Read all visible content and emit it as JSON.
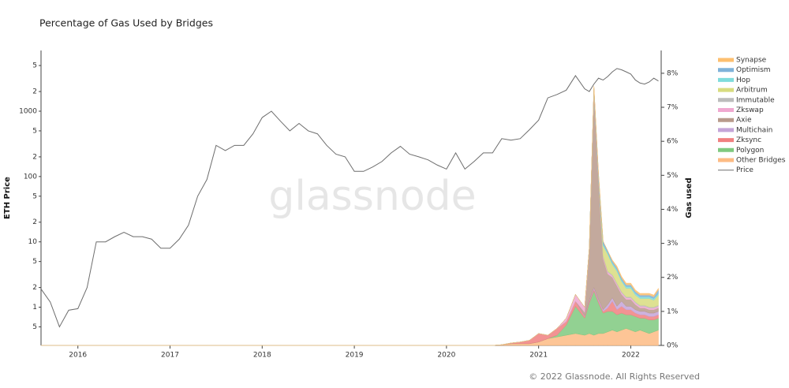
{
  "chart_data": {
    "type": "line+stacked-area",
    "title": "Percentage of Gas Used by Bridges",
    "ylabel": "ETH Price",
    "y2label": "Gas used",
    "watermark": "glassnode",
    "footer": "© 2022 Glassnode. All Rights Reserved",
    "ylog": true,
    "x": [
      2015.6,
      2015.7,
      2015.8,
      2015.9,
      2016.0,
      2016.1,
      2016.2,
      2016.3,
      2016.4,
      2016.5,
      2016.6,
      2016.7,
      2016.8,
      2016.9,
      2017.0,
      2017.1,
      2017.2,
      2017.3,
      2017.4,
      2017.5,
      2017.6,
      2017.7,
      2017.8,
      2017.9,
      2018.0,
      2018.1,
      2018.2,
      2018.3,
      2018.4,
      2018.5,
      2018.6,
      2018.7,
      2018.8,
      2018.9,
      2019.0,
      2019.1,
      2019.2,
      2019.3,
      2019.4,
      2019.5,
      2019.6,
      2019.7,
      2019.8,
      2019.9,
      2020.0,
      2020.1,
      2020.2,
      2020.3,
      2020.4,
      2020.5,
      2020.6,
      2020.7,
      2020.8,
      2020.9,
      2021.0,
      2021.1,
      2021.2,
      2021.3,
      2021.4,
      2021.5,
      2021.55,
      2021.6,
      2021.65,
      2021.7,
      2021.75,
      2021.8,
      2021.85,
      2021.9,
      2021.95,
      2022.0,
      2022.05,
      2022.1,
      2022.15,
      2022.2,
      2022.25,
      2022.3
    ],
    "xlim": [
      2015.6,
      2022.33
    ],
    "xticks": [
      2016,
      2017,
      2018,
      2019,
      2020,
      2021,
      2022
    ],
    "ylim": [
      0.26,
      8500
    ],
    "yticks": [
      {
        "value": 0.5,
        "label": "5"
      },
      1,
      2,
      5,
      10,
      {
        "value": 20,
        "label": "2"
      },
      {
        "value": 50,
        "label": "5"
      },
      100,
      {
        "value": 200,
        "label": "2"
      },
      {
        "value": 500,
        "label": "5"
      },
      1000,
      {
        "value": 2000,
        "label": "2"
      },
      {
        "value": 5000,
        "label": "5"
      }
    ],
    "y2lim": [
      0,
      8.67
    ],
    "y2ticks": [
      {
        "value": 0,
        "label": "0%"
      },
      {
        "value": 1,
        "label": "1%"
      },
      {
        "value": 2,
        "label": "2%"
      },
      {
        "value": 3,
        "label": "3%"
      },
      {
        "value": 4,
        "label": "4%"
      },
      {
        "value": 5,
        "label": "5%"
      },
      {
        "value": 6,
        "label": "6%"
      },
      {
        "value": 7,
        "label": "7%"
      },
      {
        "value": 8,
        "label": "8%"
      }
    ],
    "series": [
      {
        "name": "Synapse",
        "color": "#fdbf6f",
        "axis": "y2",
        "values": [
          0,
          0,
          0,
          0,
          0,
          0,
          0,
          0,
          0,
          0,
          0,
          0,
          0,
          0,
          0,
          0,
          0,
          0,
          0,
          0,
          0,
          0,
          0,
          0,
          0,
          0,
          0,
          0,
          0,
          0,
          0,
          0,
          0,
          0,
          0,
          0,
          0,
          0,
          0,
          0,
          0,
          0,
          0,
          0,
          0,
          0,
          0,
          0,
          0,
          0,
          0,
          0,
          0,
          0,
          0,
          0,
          0,
          0,
          0,
          0,
          0,
          0,
          0,
          0,
          0,
          0.03,
          0.05,
          0.05,
          0.05,
          0.05,
          0.05,
          0.05,
          0.05,
          0.05,
          0.05,
          0.05
        ]
      },
      {
        "name": "Optimism",
        "color": "#7fb2d9",
        "axis": "y2",
        "values": [
          0,
          0,
          0,
          0,
          0,
          0,
          0,
          0,
          0,
          0,
          0,
          0,
          0,
          0,
          0,
          0,
          0,
          0,
          0,
          0,
          0,
          0,
          0,
          0,
          0,
          0,
          0,
          0,
          0,
          0,
          0,
          0,
          0,
          0,
          0,
          0,
          0,
          0,
          0,
          0,
          0,
          0,
          0,
          0,
          0,
          0,
          0,
          0,
          0,
          0,
          0,
          0,
          0,
          0,
          0,
          0,
          0,
          0,
          0,
          0,
          0,
          0.05,
          0.1,
          0.08,
          0.05,
          0.05,
          0.05,
          0.05,
          0.05,
          0.05,
          0.05,
          0.05,
          0.05,
          0.05,
          0.05,
          0.1
        ]
      },
      {
        "name": "Hop",
        "color": "#7fdcdc",
        "axis": "y2",
        "values": [
          0,
          0,
          0,
          0,
          0,
          0,
          0,
          0,
          0,
          0,
          0,
          0,
          0,
          0,
          0,
          0,
          0,
          0,
          0,
          0,
          0,
          0,
          0,
          0,
          0,
          0,
          0,
          0,
          0,
          0,
          0,
          0,
          0,
          0,
          0,
          0,
          0,
          0,
          0,
          0,
          0,
          0,
          0,
          0,
          0,
          0,
          0,
          0,
          0,
          0,
          0,
          0,
          0,
          0,
          0,
          0,
          0,
          0,
          0,
          0,
          0,
          0,
          0.02,
          0.05,
          0.05,
          0.05,
          0.05,
          0.05,
          0.05,
          0.05,
          0.05,
          0.05,
          0.05,
          0.05,
          0.05,
          0.05
        ]
      },
      {
        "name": "Arbitrum",
        "color": "#d8dc7f",
        "axis": "y2",
        "values": [
          0,
          0,
          0,
          0,
          0,
          0,
          0,
          0,
          0,
          0,
          0,
          0,
          0,
          0,
          0,
          0,
          0,
          0,
          0,
          0,
          0,
          0,
          0,
          0,
          0,
          0,
          0,
          0,
          0,
          0,
          0,
          0,
          0,
          0,
          0,
          0,
          0,
          0,
          0,
          0,
          0,
          0,
          0,
          0,
          0,
          0,
          0,
          0,
          0,
          0,
          0,
          0,
          0,
          0,
          0,
          0,
          0,
          0,
          0,
          0,
          0,
          0,
          0,
          0.3,
          0.5,
          0.3,
          0.35,
          0.3,
          0.25,
          0.25,
          0.2,
          0.2,
          0.2,
          0.25,
          0.2,
          0.3
        ]
      },
      {
        "name": "Immutable",
        "color": "#bcbcbc",
        "axis": "y2",
        "values": [
          0,
          0,
          0,
          0,
          0,
          0,
          0,
          0,
          0,
          0,
          0,
          0,
          0,
          0,
          0,
          0,
          0,
          0,
          0,
          0,
          0,
          0,
          0,
          0,
          0,
          0,
          0,
          0,
          0,
          0,
          0,
          0,
          0,
          0,
          0,
          0,
          0,
          0,
          0,
          0,
          0,
          0,
          0,
          0,
          0,
          0,
          0,
          0,
          0,
          0,
          0,
          0,
          0,
          0,
          0,
          0,
          0,
          0,
          0,
          0,
          0,
          0.02,
          0.03,
          0.03,
          0.03,
          0.03,
          0.03,
          0.03,
          0.03,
          0.03,
          0.03,
          0.03,
          0.03,
          0.03,
          0.03,
          0.03
        ]
      },
      {
        "name": "Zkswap",
        "color": "#f0a8d0",
        "axis": "y2",
        "values": [
          0,
          0,
          0,
          0,
          0,
          0,
          0,
          0,
          0,
          0,
          0,
          0,
          0,
          0,
          0,
          0,
          0,
          0,
          0,
          0,
          0,
          0,
          0,
          0,
          0,
          0,
          0,
          0,
          0,
          0,
          0,
          0,
          0,
          0,
          0,
          0,
          0,
          0,
          0,
          0,
          0,
          0,
          0,
          0,
          0,
          0,
          0,
          0,
          0,
          0,
          0,
          0,
          0,
          0,
          0,
          0,
          0,
          0.1,
          0.2,
          0.15,
          0.05,
          0.05,
          0.05,
          0.05,
          0.05,
          0.05,
          0.05,
          0.05,
          0.05,
          0.05,
          0.05,
          0.05,
          0.05,
          0.05,
          0.05,
          0.05
        ]
      },
      {
        "name": "Axie",
        "color": "#b89a8c",
        "axis": "y2",
        "values": [
          0,
          0,
          0,
          0,
          0,
          0,
          0,
          0,
          0,
          0,
          0,
          0,
          0,
          0,
          0,
          0,
          0,
          0,
          0,
          0,
          0,
          0,
          0,
          0,
          0,
          0,
          0,
          0,
          0,
          0,
          0,
          0,
          0,
          0,
          0,
          0,
          0,
          0,
          0,
          0,
          0,
          0,
          0,
          0,
          0,
          0,
          0,
          0,
          0,
          0,
          0,
          0,
          0,
          0,
          0,
          0,
          0,
          0,
          0,
          0.1,
          1.5,
          5.8,
          3.5,
          1.5,
          0.9,
          0.6,
          0.6,
          0.2,
          0.2,
          0.2,
          0.15,
          0.1,
          0.1,
          0.1,
          0.1,
          0.1
        ]
      },
      {
        "name": "Multichain",
        "color": "#c4a5d8",
        "axis": "y2",
        "values": [
          0,
          0,
          0,
          0,
          0,
          0,
          0,
          0,
          0,
          0,
          0,
          0,
          0,
          0,
          0,
          0,
          0,
          0,
          0,
          0,
          0,
          0,
          0,
          0,
          0,
          0,
          0,
          0,
          0,
          0,
          0,
          0,
          0,
          0,
          0,
          0,
          0,
          0,
          0,
          0,
          0,
          0,
          0,
          0,
          0,
          0,
          0,
          0,
          0,
          0,
          0,
          0,
          0,
          0,
          0,
          0,
          0,
          0,
          0,
          0.02,
          0.03,
          0.05,
          0.05,
          0.05,
          0.1,
          0.1,
          0.1,
          0.15,
          0.1,
          0.1,
          0.1,
          0.1,
          0.1,
          0.1,
          0.1,
          0.1
        ]
      },
      {
        "name": "Zksync",
        "color": "#f08080",
        "axis": "y2",
        "values": [
          0,
          0,
          0,
          0,
          0,
          0,
          0,
          0,
          0,
          0,
          0,
          0,
          0,
          0,
          0,
          0,
          0,
          0,
          0,
          0,
          0,
          0,
          0,
          0,
          0,
          0,
          0,
          0,
          0,
          0,
          0,
          0,
          0,
          0,
          0,
          0,
          0,
          0,
          0,
          0,
          0,
          0,
          0,
          0,
          0,
          0,
          0,
          0,
          0,
          0,
          0,
          0.02,
          0.05,
          0.1,
          0.25,
          0.1,
          0.2,
          0.1,
          0.15,
          0.05,
          0.05,
          0.05,
          0.05,
          0.05,
          0.1,
          0.3,
          0.15,
          0.2,
          0.15,
          0.15,
          0.1,
          0.1,
          0.1,
          0.1,
          0.1,
          0.1
        ]
      },
      {
        "name": "Polygon",
        "color": "#7fc97f",
        "axis": "y2",
        "values": [
          0,
          0,
          0,
          0,
          0,
          0,
          0,
          0,
          0,
          0,
          0,
          0,
          0,
          0,
          0,
          0,
          0,
          0,
          0,
          0,
          0,
          0,
          0,
          0,
          0,
          0,
          0,
          0,
          0,
          0,
          0,
          0,
          0,
          0,
          0,
          0,
          0,
          0,
          0,
          0,
          0,
          0,
          0,
          0,
          0,
          0,
          0,
          0,
          0,
          0,
          0,
          0,
          0,
          0,
          0,
          0,
          0.05,
          0.3,
          0.8,
          0.5,
          0.9,
          1.3,
          0.9,
          0.6,
          0.6,
          0.55,
          0.5,
          0.5,
          0.4,
          0.45,
          0.45,
          0.35,
          0.4,
          0.4,
          0.35,
          0.35
        ]
      },
      {
        "name": "Other Bridges",
        "color": "#fdbb84",
        "axis": "y2",
        "values": [
          0,
          0,
          0,
          0,
          0,
          0,
          0,
          0,
          0,
          0,
          0,
          0,
          0,
          0,
          0,
          0,
          0,
          0,
          0,
          0,
          0,
          0,
          0,
          0,
          0,
          0,
          0,
          0,
          0,
          0,
          0,
          0,
          0,
          0,
          0,
          0,
          0,
          0,
          0,
          0,
          0,
          0,
          0,
          0,
          0,
          0,
          0,
          0,
          0,
          0,
          0.02,
          0.05,
          0.05,
          0.05,
          0.1,
          0.2,
          0.25,
          0.3,
          0.35,
          0.3,
          0.35,
          0.3,
          0.35,
          0.35,
          0.4,
          0.45,
          0.4,
          0.45,
          0.5,
          0.45,
          0.4,
          0.45,
          0.4,
          0.35,
          0.4,
          0.45
        ]
      },
      {
        "name": "Price",
        "color": "#6d6d6d",
        "axis": "y",
        "values": [
          1.9,
          1.2,
          0.5,
          0.9,
          0.95,
          2,
          10,
          10,
          12,
          14,
          12,
          12,
          11,
          8,
          8,
          11,
          18,
          50,
          90,
          300,
          250,
          300,
          300,
          450,
          800,
          1000,
          700,
          500,
          650,
          500,
          450,
          300,
          220,
          200,
          120,
          120,
          140,
          170,
          230,
          290,
          220,
          200,
          180,
          150,
          130,
          230,
          130,
          170,
          230,
          230,
          380,
          360,
          380,
          520,
          730,
          1600,
          1800,
          2100,
          3500,
          2200,
          2000,
          2600,
          3200,
          3000,
          3400,
          4000,
          4500,
          4300,
          4000,
          3700,
          3000,
          2700,
          2600,
          2800,
          3200,
          2900
        ]
      }
    ]
  }
}
